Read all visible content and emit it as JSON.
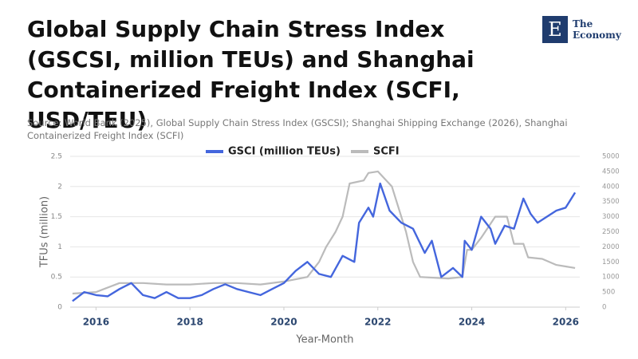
{
  "chart_data": {
    "type": "line",
    "title": "Global Supply Chain Stress Index (GSCSI, million TEUs) and Shanghai Containerized Freight Index (SCFI, USD/TEU)",
    "subtitle": "Source: World Bank (2025), Global Supply Chain Stress Index (GSCSI); Shanghai Shipping Exchange (2026), Shanghai Containerized Freight Index (SCFI)",
    "logo": {
      "letter": "E",
      "line1": "The",
      "line2": "Economy"
    },
    "xlabel": "Year-Month",
    "ylabel": "TFUs (million)",
    "xlim": [
      2015.45,
      2026.3
    ],
    "xticks": [
      2016,
      2018,
      2020,
      2022,
      2024,
      2026
    ],
    "ylim": [
      0,
      2.5
    ],
    "yticks": [
      0,
      0.5,
      1,
      1.5,
      2,
      2.5
    ],
    "y2lim": [
      0,
      5000
    ],
    "y2ticks": [
      0,
      500,
      1000,
      1500,
      2000,
      2500,
      3000,
      3500,
      4000,
      4500,
      5000
    ],
    "grid": true,
    "legend": "top",
    "series": [
      {
        "name": "GSCI (million TEUs)",
        "color": "#4466dd",
        "x": [
          2015.5,
          2015.75,
          2016.0,
          2016.25,
          2016.5,
          2016.75,
          2017.0,
          2017.25,
          2017.5,
          2017.75,
          2018.0,
          2018.25,
          2018.5,
          2018.75,
          2019.0,
          2019.25,
          2019.5,
          2019.75,
          2020.0,
          2020.25,
          2020.5,
          2020.75,
          2021.0,
          2021.25,
          2021.5,
          2021.6,
          2021.8,
          2021.9,
          2022.05,
          2022.25,
          2022.5,
          2022.75,
          2023.0,
          2023.15,
          2023.35,
          2023.6,
          2023.8,
          2023.85,
          2024.0,
          2024.2,
          2024.4,
          2024.5,
          2024.7,
          2024.9,
          2025.1,
          2025.25,
          2025.4,
          2025.6,
          2025.8,
          2026.0,
          2026.2
        ],
        "values": [
          0.1,
          0.25,
          0.2,
          0.18,
          0.3,
          0.4,
          0.2,
          0.15,
          0.25,
          0.15,
          0.15,
          0.2,
          0.3,
          0.38,
          0.3,
          0.25,
          0.2,
          0.3,
          0.4,
          0.6,
          0.75,
          0.55,
          0.5,
          0.85,
          0.75,
          1.4,
          1.65,
          1.5,
          2.05,
          1.6,
          1.4,
          1.3,
          0.9,
          1.1,
          0.5,
          0.65,
          0.5,
          1.1,
          0.95,
          1.5,
          1.3,
          1.05,
          1.35,
          1.3,
          1.8,
          1.55,
          1.4,
          1.5,
          1.6,
          1.65,
          1.9
        ]
      },
      {
        "name": "SCFI",
        "color": "#bbbbbb",
        "axis": "y2",
        "x": [
          2015.5,
          2016.0,
          2016.5,
          2017.0,
          2017.5,
          2018.0,
          2018.5,
          2019.0,
          2019.5,
          2020.0,
          2020.5,
          2020.75,
          2020.9,
          2021.1,
          2021.25,
          2021.4,
          2021.7,
          2021.8,
          2022.0,
          2022.3,
          2022.5,
          2022.6,
          2022.75,
          2022.9,
          2023.5,
          2023.8,
          2023.9,
          2024.0,
          2024.2,
          2024.5,
          2024.75,
          2024.9,
          2025.1,
          2025.2,
          2025.5,
          2025.8,
          2026.0,
          2026.2
        ],
        "values": [
          450,
          500,
          800,
          800,
          750,
          750,
          800,
          800,
          750,
          850,
          1000,
          1500,
          2000,
          2500,
          3000,
          4100,
          4200,
          4450,
          4500,
          4000,
          3000,
          2500,
          1500,
          1000,
          950,
          1000,
          1900,
          1900,
          2300,
          3000,
          3000,
          2100,
          2100,
          1650,
          1600,
          1400,
          1350,
          1300
        ]
      }
    ]
  }
}
